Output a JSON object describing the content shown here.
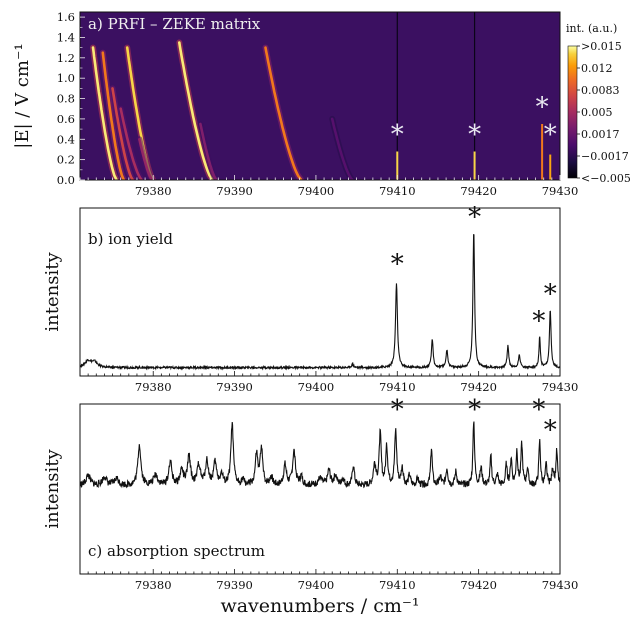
{
  "colors": {
    "heatmap_bg": "#3b1061",
    "trace": "#111111",
    "star_on_heatmap": "#e8e8f0",
    "colormap": [
      "#000004",
      "#1b0c41",
      "#4a0c6b",
      "#781c6d",
      "#a52c60",
      "#cf4446",
      "#ed6925",
      "#fb9b06",
      "#f7d13d",
      "#fcffa4"
    ]
  },
  "chart_data": [
    {
      "type": "heatmap",
      "panel_label": "a) PRFI – ZEKE matrix",
      "ylabel": "|E| / V cm⁻¹",
      "xlim": [
        79371,
        79430
      ],
      "ylim": [
        0,
        1.65
      ],
      "xticks": [
        79380,
        79390,
        79400,
        79410,
        79420,
        79430
      ],
      "yticks": [
        "0.0",
        "0.2",
        "0.4",
        "0.6",
        "0.8",
        "1.0",
        "1.2",
        "1.4",
        "1.6"
      ],
      "colorbar": {
        "title": "int. (a.u.)",
        "ticks": [
          ">0.015",
          "0.012",
          "0.0083",
          "0.005",
          "0.0017",
          "−0.0017",
          "<−0.005"
        ]
      },
      "curved_bands": [
        {
          "x0": 79372.6,
          "x1": 79375.5,
          "ytop": 1.3,
          "intensity": 0.95
        },
        {
          "x0": 79373.8,
          "x1": 79376.4,
          "ytop": 1.25,
          "intensity": 0.7
        },
        {
          "x0": 79375.0,
          "x1": 79377.5,
          "ytop": 0.9,
          "intensity": 0.55
        },
        {
          "x0": 79376.0,
          "x1": 79378.6,
          "ytop": 0.7,
          "intensity": 0.45
        },
        {
          "x0": 79376.8,
          "x1": 79380.0,
          "ytop": 1.3,
          "intensity": 0.9
        },
        {
          "x0": 79378.3,
          "x1": 79379.9,
          "ytop": 0.4,
          "intensity": 0.4
        },
        {
          "x0": 79383.2,
          "x1": 79387.3,
          "ytop": 1.35,
          "intensity": 0.95
        },
        {
          "x0": 79385.8,
          "x1": 79387.8,
          "ytop": 0.55,
          "intensity": 0.35
        },
        {
          "x0": 79393.8,
          "x1": 79398.2,
          "ytop": 1.3,
          "intensity": 0.7
        },
        {
          "x0": 79402.0,
          "x1": 79404.5,
          "ytop": 0.6,
          "intensity": 0.25
        }
      ],
      "vertical_lines": [
        79410.0,
        79419.5
      ],
      "spikes": [
        {
          "x": 79410.0,
          "ytop": 0.28,
          "intensity": 0.9
        },
        {
          "x": 79419.5,
          "ytop": 0.28,
          "intensity": 0.9
        },
        {
          "x": 79427.8,
          "ytop": 0.55,
          "intensity": 0.7
        },
        {
          "x": 79428.8,
          "ytop": 0.25,
          "intensity": 0.8
        }
      ],
      "stars": [
        {
          "x": 79410.0,
          "y": 0.5
        },
        {
          "x": 79419.5,
          "y": 0.5
        },
        {
          "x": 79427.8,
          "y": 0.77
        },
        {
          "x": 79428.8,
          "y": 0.5
        }
      ]
    },
    {
      "type": "line",
      "panel_label": "b) ion yield",
      "ylabel": "intensity",
      "xlim": [
        79371,
        79430
      ],
      "ylim": [
        0,
        1.0
      ],
      "xticks": [
        79380,
        79390,
        79400,
        79410,
        79420,
        79430
      ],
      "baseline": 0.05,
      "noise": 0.006,
      "peaks": [
        {
          "x": 79372.0,
          "h": 0.04,
          "w": 0.5
        },
        {
          "x": 79372.8,
          "h": 0.03,
          "w": 0.4
        },
        {
          "x": 79404.5,
          "h": 0.02,
          "w": 0.15
        },
        {
          "x": 79409.9,
          "h": 0.5,
          "w": 0.14
        },
        {
          "x": 79414.3,
          "h": 0.17,
          "w": 0.12
        },
        {
          "x": 79416.1,
          "h": 0.1,
          "w": 0.14
        },
        {
          "x": 79419.4,
          "h": 0.82,
          "w": 0.12
        },
        {
          "x": 79423.6,
          "h": 0.13,
          "w": 0.12
        },
        {
          "x": 79425.0,
          "h": 0.08,
          "w": 0.12
        },
        {
          "x": 79427.5,
          "h": 0.18,
          "w": 0.1
        },
        {
          "x": 79428.8,
          "h": 0.34,
          "w": 0.12
        }
      ],
      "stars": [
        {
          "x": 79410.0,
          "y": 0.7
        },
        {
          "x": 79419.5,
          "y": 0.98
        },
        {
          "x": 79427.4,
          "y": 0.36
        },
        {
          "x": 79428.8,
          "y": 0.52
        }
      ]
    },
    {
      "type": "line",
      "panel_label": "c) absorption spectrum",
      "ylabel": "intensity",
      "xlim": [
        79371,
        79430
      ],
      "ylim": [
        0,
        1.0
      ],
      "xticks": [
        79380,
        79390,
        79400,
        79410,
        79420,
        79430
      ],
      "baseline": 0.52,
      "noise": 0.02,
      "peaks": [
        {
          "x": 79372.0,
          "h": 0.06,
          "w": 0.3
        },
        {
          "x": 79374.0,
          "h": 0.05,
          "w": 0.3
        },
        {
          "x": 79375.5,
          "h": 0.04,
          "w": 0.3
        },
        {
          "x": 79378.3,
          "h": 0.24,
          "w": 0.22
        },
        {
          "x": 79380.3,
          "h": 0.06,
          "w": 0.3
        },
        {
          "x": 79382.1,
          "h": 0.14,
          "w": 0.22
        },
        {
          "x": 79383.5,
          "h": 0.09,
          "w": 0.22
        },
        {
          "x": 79384.4,
          "h": 0.17,
          "w": 0.22
        },
        {
          "x": 79385.6,
          "h": 0.12,
          "w": 0.22
        },
        {
          "x": 79386.6,
          "h": 0.14,
          "w": 0.22
        },
        {
          "x": 79387.6,
          "h": 0.13,
          "w": 0.22
        },
        {
          "x": 79388.4,
          "h": 0.06,
          "w": 0.2
        },
        {
          "x": 79389.7,
          "h": 0.36,
          "w": 0.18
        },
        {
          "x": 79391.0,
          "h": 0.03,
          "w": 0.2
        },
        {
          "x": 79392.7,
          "h": 0.18,
          "w": 0.18
        },
        {
          "x": 79393.3,
          "h": 0.22,
          "w": 0.18
        },
        {
          "x": 79394.5,
          "h": 0.05,
          "w": 0.2
        },
        {
          "x": 79396.2,
          "h": 0.12,
          "w": 0.2
        },
        {
          "x": 79397.3,
          "h": 0.2,
          "w": 0.2
        },
        {
          "x": 79398.2,
          "h": 0.05,
          "w": 0.2
        },
        {
          "x": 79400.5,
          "h": 0.04,
          "w": 0.3
        },
        {
          "x": 79401.6,
          "h": 0.09,
          "w": 0.2
        },
        {
          "x": 79402.4,
          "h": 0.06,
          "w": 0.2
        },
        {
          "x": 79403.3,
          "h": 0.04,
          "w": 0.2
        },
        {
          "x": 79404.6,
          "h": 0.12,
          "w": 0.15
        },
        {
          "x": 79407.2,
          "h": 0.12,
          "w": 0.18
        },
        {
          "x": 79407.9,
          "h": 0.3,
          "w": 0.15
        },
        {
          "x": 79408.7,
          "h": 0.22,
          "w": 0.15
        },
        {
          "x": 79409.8,
          "h": 0.32,
          "w": 0.15
        },
        {
          "x": 79410.6,
          "h": 0.1,
          "w": 0.15
        },
        {
          "x": 79411.5,
          "h": 0.06,
          "w": 0.15
        },
        {
          "x": 79412.5,
          "h": 0.04,
          "w": 0.15
        },
        {
          "x": 79414.2,
          "h": 0.22,
          "w": 0.12
        },
        {
          "x": 79415.3,
          "h": 0.05,
          "w": 0.15
        },
        {
          "x": 79416.1,
          "h": 0.1,
          "w": 0.15
        },
        {
          "x": 79417.2,
          "h": 0.08,
          "w": 0.15
        },
        {
          "x": 79419.4,
          "h": 0.38,
          "w": 0.12
        },
        {
          "x": 79420.3,
          "h": 0.1,
          "w": 0.15
        },
        {
          "x": 79421.5,
          "h": 0.17,
          "w": 0.12
        },
        {
          "x": 79422.3,
          "h": 0.06,
          "w": 0.15
        },
        {
          "x": 79423.4,
          "h": 0.12,
          "w": 0.12
        },
        {
          "x": 79424.0,
          "h": 0.16,
          "w": 0.12
        },
        {
          "x": 79424.7,
          "h": 0.2,
          "w": 0.12
        },
        {
          "x": 79425.3,
          "h": 0.24,
          "w": 0.12
        },
        {
          "x": 79426.0,
          "h": 0.1,
          "w": 0.12
        },
        {
          "x": 79427.5,
          "h": 0.26,
          "w": 0.12
        },
        {
          "x": 79428.3,
          "h": 0.12,
          "w": 0.12
        },
        {
          "x": 79429.1,
          "h": 0.1,
          "w": 0.12
        },
        {
          "x": 79429.6,
          "h": 0.2,
          "w": 0.12
        }
      ],
      "stars": [
        {
          "x": 79410.0,
          "y": 1.0
        },
        {
          "x": 79419.5,
          "y": 1.0
        },
        {
          "x": 79427.4,
          "y": 1.0
        },
        {
          "x": 79428.8,
          "y": 0.88
        }
      ]
    }
  ],
  "xlabel": "wavenumbers / cm⁻¹"
}
